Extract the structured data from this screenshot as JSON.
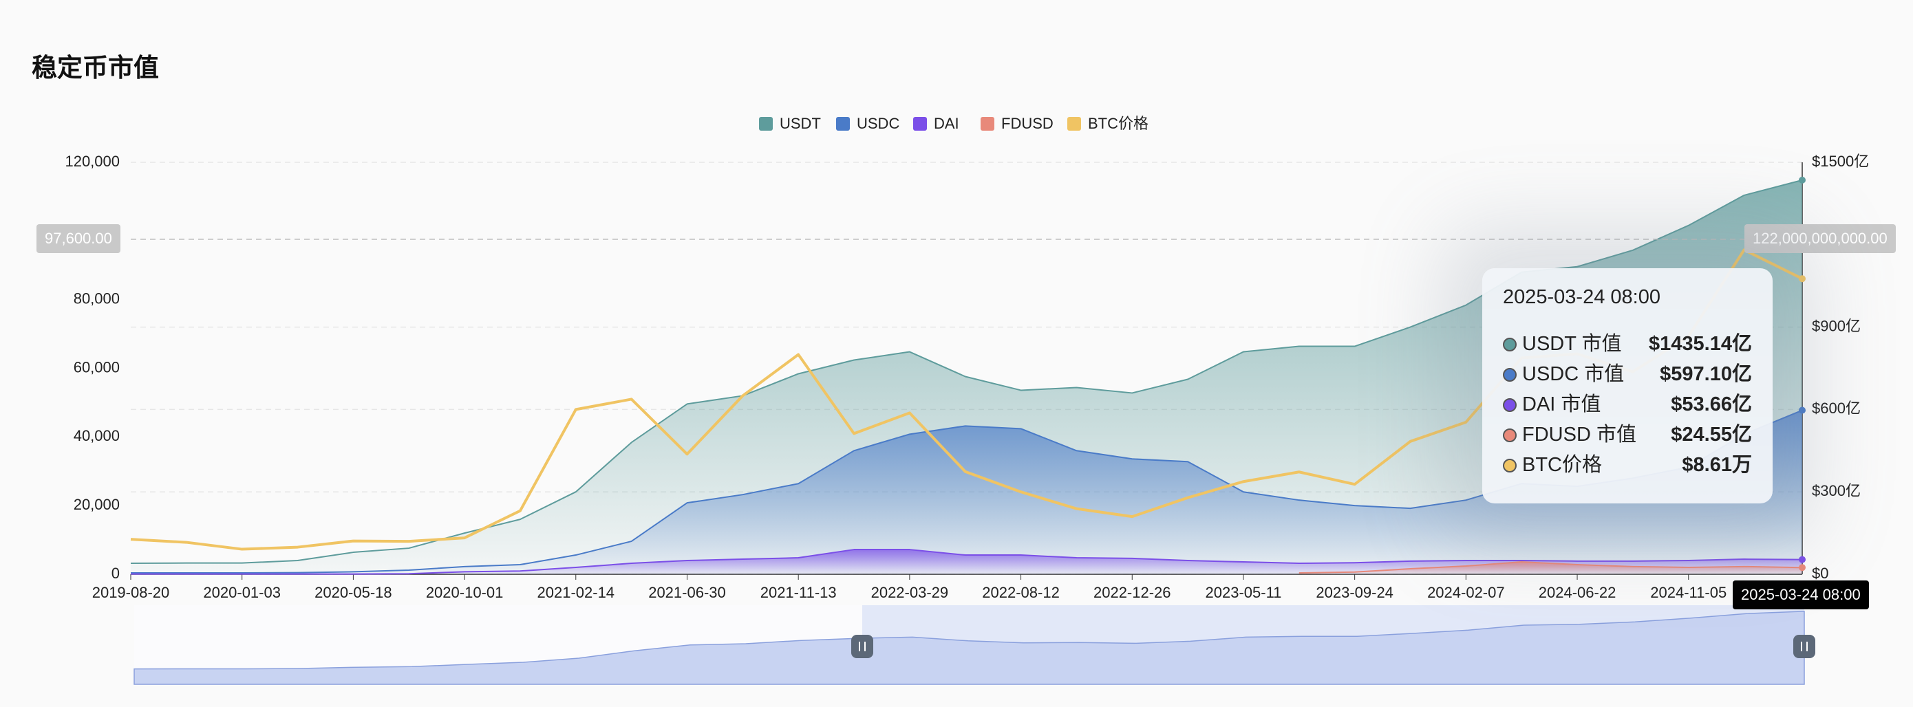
{
  "title": "稳定币市值",
  "chart_data": {
    "type": "area",
    "x": [
      "2019-08-20",
      "2019-10-27",
      "2020-01-03",
      "2020-03-11",
      "2020-05-18",
      "2020-07-25",
      "2020-10-01",
      "2020-12-08",
      "2021-02-14",
      "2021-04-23",
      "2021-06-30",
      "2021-09-06",
      "2021-11-13",
      "2022-01-20",
      "2022-03-29",
      "2022-06-05",
      "2022-08-12",
      "2022-10-19",
      "2022-12-26",
      "2023-03-04",
      "2023-05-11",
      "2023-07-18",
      "2023-09-24",
      "2023-12-01",
      "2024-02-07",
      "2024-04-15",
      "2024-06-22",
      "2024-08-29",
      "2024-11-05",
      "2025-01-12",
      "2025-03-24"
    ],
    "xticks": [
      "2019-08-20",
      "2020-01-03",
      "2020-05-18",
      "2020-10-01",
      "2021-02-14",
      "2021-06-30",
      "2021-11-13",
      "2022-03-29",
      "2022-08-12",
      "2022-12-26",
      "2023-05-11",
      "2023-09-24",
      "2024-02-07",
      "2024-06-22",
      "2024-11-05"
    ],
    "ylim": [
      0,
      120000
    ],
    "yticks": [
      0,
      {
        "value": 20000,
        "label": "20,000"
      },
      {
        "value": 40000,
        "label": "40,000"
      },
      {
        "value": 60000,
        "label": "60,000"
      },
      {
        "value": 80000,
        "label": "80,000"
      },
      {
        "value": 120000,
        "label": "120,000"
      }
    ],
    "y2lim": [
      0,
      1500
    ],
    "y2ticks": [
      {
        "value": 0,
        "label": "$0"
      },
      {
        "value": 300,
        "label": "$300亿"
      },
      {
        "value": 600,
        "label": "$600亿"
      },
      {
        "value": 900,
        "label": "$900亿"
      },
      {
        "value": 1500,
        "label": "$1500亿"
      }
    ],
    "grid": "y2",
    "series": [
      {
        "name": "USDT",
        "type": "area",
        "axis": "y2",
        "color": "#5e9c9c",
        "values": [
          40,
          41,
          41,
          50,
          80,
          95,
          150,
          200,
          300,
          480,
          620,
          650,
          730,
          780,
          810,
          720,
          670,
          680,
          660,
          710,
          810,
          830,
          830,
          900,
          980,
          1100,
          1120,
          1180,
          1270,
          1380,
          1435.14
        ]
      },
      {
        "name": "USDC",
        "type": "area",
        "axis": "y2",
        "color": "#4a7bc8",
        "values": [
          5,
          5,
          5,
          6,
          9,
          15,
          28,
          35,
          70,
          120,
          260,
          290,
          330,
          450,
          510,
          540,
          530,
          450,
          420,
          410,
          300,
          270,
          250,
          240,
          270,
          330,
          320,
          350,
          390,
          510,
          597.1
        ]
      },
      {
        "name": "DAI",
        "type": "area",
        "axis": "y2",
        "color": "#7b4fe8",
        "values": [
          1,
          1,
          1,
          1,
          1,
          2,
          9,
          12,
          25,
          40,
          50,
          55,
          60,
          90,
          90,
          70,
          70,
          60,
          58,
          50,
          45,
          40,
          42,
          48,
          50,
          50,
          48,
          48,
          50,
          55,
          53.66
        ]
      },
      {
        "name": "FDUSD",
        "type": "area",
        "axis": "y2",
        "color": "#e8897a",
        "values": [
          null,
          null,
          null,
          null,
          null,
          null,
          null,
          null,
          null,
          null,
          null,
          null,
          null,
          null,
          null,
          null,
          null,
          null,
          null,
          null,
          null,
          5,
          8,
          20,
          30,
          45,
          35,
          28,
          25,
          28,
          24.55
        ]
      },
      {
        "name": "BTC价格",
        "type": "line",
        "axis": "y",
        "color": "#f0c463",
        "values": [
          10200,
          9300,
          7300,
          7900,
          9700,
          9600,
          10600,
          18500,
          48000,
          51000,
          35000,
          52000,
          64000,
          41000,
          47000,
          29900,
          24000,
          19100,
          16800,
          22300,
          27000,
          29800,
          26200,
          38700,
          44300,
          63000,
          64200,
          59000,
          69300,
          94500,
          86100
        ]
      }
    ],
    "crosshair": {
      "y": {
        "value": 97600,
        "label": "97,600.00"
      },
      "y2": {
        "value": 1220,
        "label": "122,000,000,000.00"
      },
      "x_label": "2025-03-24 08:00"
    },
    "tooltip": {
      "title": "2025-03-24 08:00",
      "rows": [
        {
          "name": "USDT 市值",
          "value": "$1435.14亿"
        },
        {
          "name": "USDC 市值",
          "value": "$597.10亿"
        },
        {
          "name": "DAI 市值",
          "value": "$53.66亿"
        },
        {
          "name": "FDUSD 市值",
          "value": "$24.55亿"
        },
        {
          "name": "BTC价格",
          "value": "$8.61万"
        }
      ]
    }
  }
}
